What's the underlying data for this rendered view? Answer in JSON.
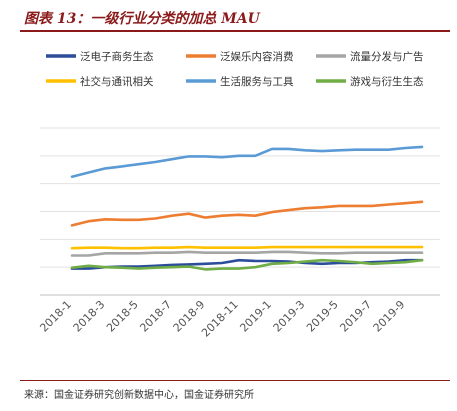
{
  "header": {
    "title": "图表 13：一级行业分类的加总 MAU"
  },
  "footer": {
    "source": "来源：国金证券研究创新数据中心，国金证券研究所"
  },
  "chart_data": {
    "type": "line",
    "title": "",
    "xlabel": "",
    "ylabel": "",
    "grid": true,
    "legend_position": "top",
    "x": [
      "2018-1",
      "2018-2",
      "2018-3",
      "2018-4",
      "2018-5",
      "2018-6",
      "2018-7",
      "2018-8",
      "2018-9",
      "2018-10",
      "2018-11",
      "2018-12",
      "2019-1",
      "2019-2",
      "2019-3",
      "2019-4",
      "2019-5",
      "2019-6",
      "2019-7",
      "2019-8",
      "2019-9",
      "2019-10"
    ],
    "tick_labels": [
      "2018-1",
      "2018-3",
      "2018-5",
      "2018-7",
      "2018-9",
      "2018-11",
      "2019-1",
      "2019-3",
      "2019-5",
      "2019-7",
      "2019-9"
    ],
    "ylim": [
      0,
      6
    ],
    "series": [
      {
        "name": "泛电子商务生态",
        "color": "#2b4d9a",
        "values": [
          0.95,
          0.95,
          1.0,
          1.02,
          1.02,
          1.05,
          1.08,
          1.1,
          1.12,
          1.15,
          1.25,
          1.22,
          1.22,
          1.2,
          1.15,
          1.12,
          1.15,
          1.15,
          1.18,
          1.2,
          1.25,
          1.25
        ]
      },
      {
        "name": "泛娱乐内容消费",
        "color": "#ed7d31",
        "values": [
          2.5,
          2.65,
          2.72,
          2.7,
          2.7,
          2.75,
          2.85,
          2.92,
          2.78,
          2.85,
          2.88,
          2.85,
          2.98,
          3.05,
          3.12,
          3.15,
          3.2,
          3.2,
          3.2,
          3.25,
          3.3,
          3.35
        ]
      },
      {
        "name": "流量分发与广告",
        "color": "#a5a5a5",
        "values": [
          1.42,
          1.42,
          1.5,
          1.5,
          1.5,
          1.52,
          1.52,
          1.55,
          1.52,
          1.52,
          1.52,
          1.52,
          1.55,
          1.55,
          1.52,
          1.5,
          1.5,
          1.52,
          1.52,
          1.52,
          1.52,
          1.52
        ]
      },
      {
        "name": "社交与通讯相关",
        "color": "#ffc000",
        "values": [
          1.68,
          1.7,
          1.7,
          1.68,
          1.68,
          1.7,
          1.7,
          1.72,
          1.7,
          1.7,
          1.7,
          1.7,
          1.72,
          1.72,
          1.72,
          1.72,
          1.72,
          1.72,
          1.72,
          1.72,
          1.72,
          1.72
        ]
      },
      {
        "name": "生活服务与工具",
        "color": "#5b9bd5",
        "values": [
          4.25,
          4.4,
          4.55,
          4.62,
          4.7,
          4.78,
          4.88,
          4.98,
          4.98,
          4.95,
          5.0,
          5.0,
          5.25,
          5.25,
          5.2,
          5.17,
          5.2,
          5.22,
          5.22,
          5.22,
          5.28,
          5.32
        ]
      },
      {
        "name": "游戏与衍生生态",
        "color": "#70ad47",
        "values": [
          0.98,
          1.05,
          1.0,
          0.98,
          0.95,
          0.98,
          1.0,
          1.02,
          0.92,
          0.95,
          0.95,
          1.0,
          1.12,
          1.15,
          1.2,
          1.25,
          1.22,
          1.18,
          1.12,
          1.15,
          1.18,
          1.25
        ]
      }
    ]
  }
}
